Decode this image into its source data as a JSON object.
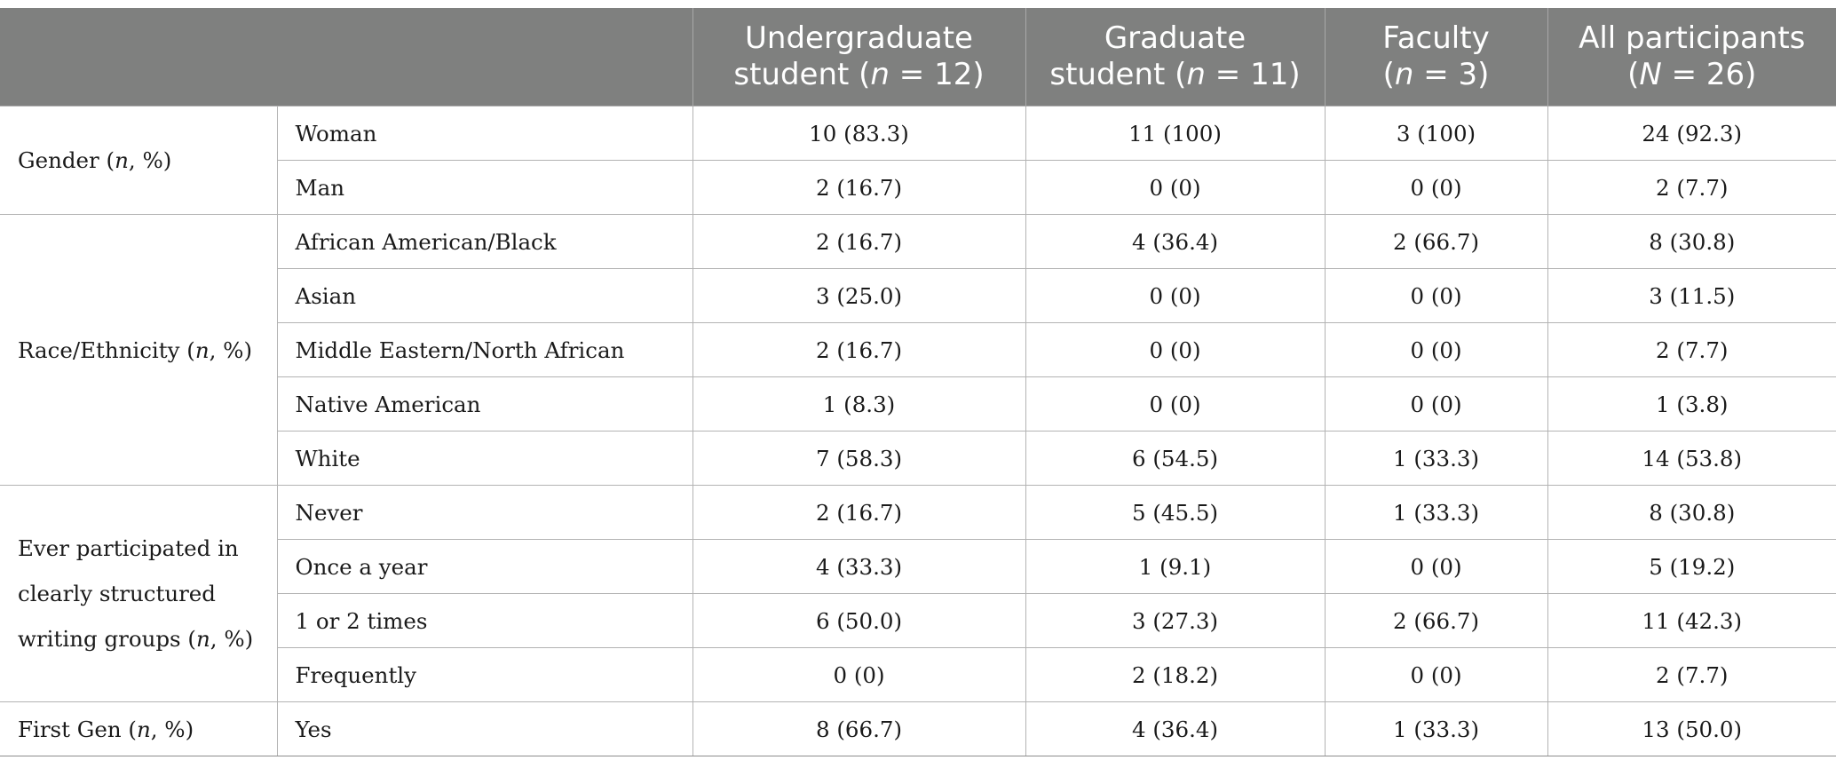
{
  "header": {
    "col1": [
      "",
      ""
    ],
    "col2": [
      "Undergraduate",
      "student (",
      "n",
      " = 12)"
    ],
    "col3": [
      "Graduate",
      "student (",
      "n",
      " = 11)"
    ],
    "col4": [
      "Faculty",
      "(",
      "n",
      " = 3)"
    ],
    "col5": [
      "All participants",
      "(",
      "N",
      " = 26)"
    ]
  },
  "groups": [
    {
      "label": "Gender (n, %)",
      "label_lines": [
        [
          "Gender (",
          "n",
          ", %)"
        ]
      ],
      "rows": [
        {
          "category": "Woman",
          "values": [
            "10 (83.3)",
            "11 (100)",
            "3 (100)",
            "24 (92.3)"
          ]
        },
        {
          "category": "Man",
          "values": [
            "2 (16.7)",
            "0 (0)",
            "0 (0)",
            "2 (7.7)"
          ]
        }
      ]
    },
    {
      "label": "Race/Ethnicity (n, %)",
      "label_lines": [
        [
          "Race/Ethnicity (",
          "n",
          ", %)"
        ]
      ],
      "rows": [
        {
          "category": "African American/Black",
          "values": [
            "2 (16.7)",
            "4 (36.4)",
            "2 (66.7)",
            "8 (30.8)"
          ]
        },
        {
          "category": "Asian",
          "values": [
            "3 (25.0)",
            "0 (0)",
            "0 (0)",
            "3 (11.5)"
          ]
        },
        {
          "category": "Middle Eastern/North African",
          "values": [
            "2 (16.7)",
            "0 (0)",
            "0 (0)",
            "2 (7.7)"
          ]
        },
        {
          "category": "Native American",
          "values": [
            "1 (8.3)",
            "0 (0)",
            "0 (0)",
            "1 (3.8)"
          ]
        },
        {
          "category": "White",
          "values": [
            "7 (58.3)",
            "6 (54.5)",
            "1 (33.3)",
            "14 (53.8)"
          ]
        }
      ]
    },
    {
      "label": "Ever participated in clearly structured writing groups (n, %)",
      "label_lines": [
        [
          "Ever participated in"
        ],
        [
          "clearly structured"
        ],
        [
          "writing groups (",
          "n",
          ", %)"
        ]
      ],
      "rows": [
        {
          "category": "Never",
          "values": [
            "2 (16.7)",
            "5 (45.5)",
            "1 (33.3)",
            "8 (30.8)"
          ]
        },
        {
          "category": "Once a year",
          "values": [
            "4 (33.3)",
            "1 (9.1)",
            "0 (0)",
            "5 (19.2)"
          ]
        },
        {
          "category": "1 or 2 times",
          "values": [
            "6 (50.0)",
            "3 (27.3)",
            "2 (66.7)",
            "11 (42.3)"
          ]
        },
        {
          "category": "Frequently",
          "values": [
            "0 (0)",
            "2 (18.2)",
            "0 (0)",
            "2 (7.7)"
          ]
        }
      ]
    },
    {
      "label": "First Gen (n, %)",
      "label_lines": [
        [
          "First Gen (",
          "n",
          ", %)"
        ]
      ],
      "rows": [
        {
          "category": "Yes",
          "values": [
            "8 (66.7)",
            "4 (36.4)",
            "1 (33.3)",
            "13 (50.0)"
          ]
        }
      ]
    }
  ]
}
